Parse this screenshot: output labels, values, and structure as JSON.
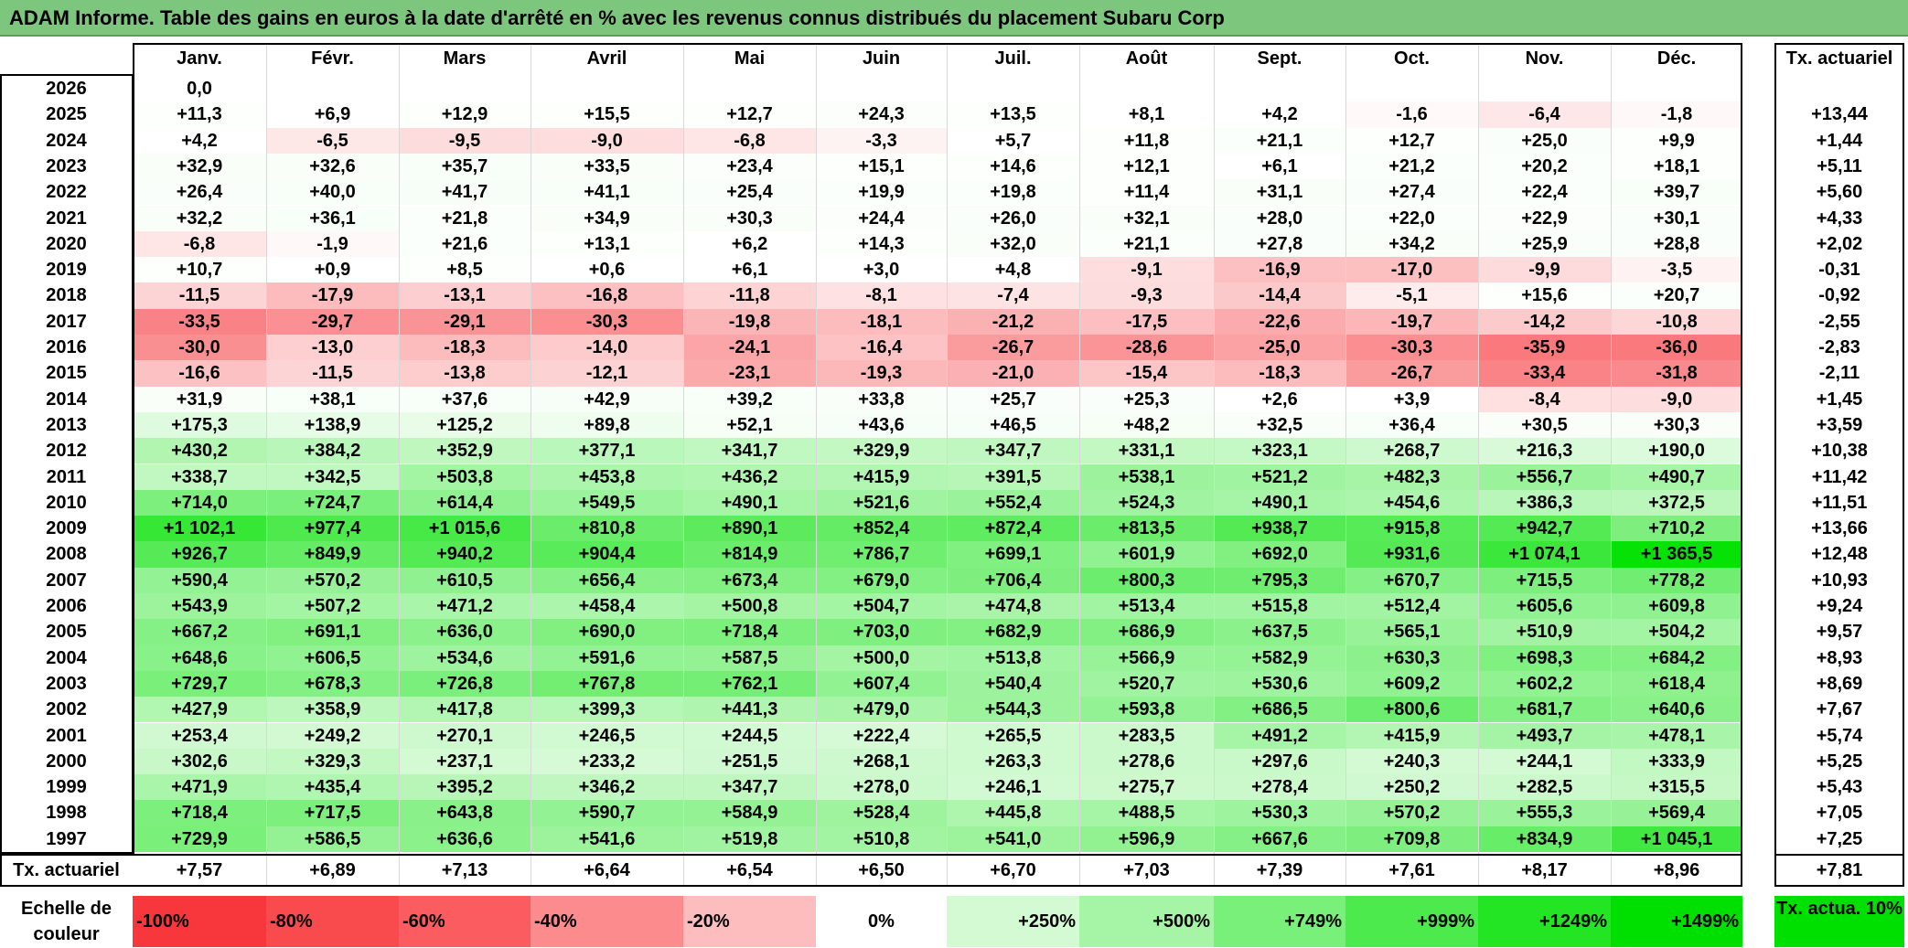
{
  "title": "ADAM Informe. Table des gains en euros à la date d'arrêté en % avec les revenus connus distribués du placement Subaru Corp",
  "months": [
    "Janv.",
    "Févr.",
    "Mars",
    "Avril",
    "Mai",
    "Juin",
    "Juil.",
    "Août",
    "Sept.",
    "Oct.",
    "Nov.",
    "Déc."
  ],
  "rate_header": "Tx. actuariel",
  "rows": [
    {
      "year": "2026",
      "values": [
        "0,0",
        "",
        "",
        "",
        "",
        "",
        "",
        "",
        "",
        "",
        "",
        ""
      ],
      "rate": ""
    },
    {
      "year": "2025",
      "values": [
        "+11,3",
        "+6,9",
        "+12,9",
        "+15,5",
        "+12,7",
        "+24,3",
        "+13,5",
        "+8,1",
        "+4,2",
        "-1,6",
        "-6,4",
        "-1,8"
      ],
      "rate": "+13,44"
    },
    {
      "year": "2024",
      "values": [
        "+4,2",
        "-6,5",
        "-9,5",
        "-9,0",
        "-6,8",
        "-3,3",
        "+5,7",
        "+11,8",
        "+21,1",
        "+12,7",
        "+25,0",
        "+9,9"
      ],
      "rate": "+1,44"
    },
    {
      "year": "2023",
      "values": [
        "+32,9",
        "+32,6",
        "+35,7",
        "+33,5",
        "+23,4",
        "+15,1",
        "+14,6",
        "+12,1",
        "+6,1",
        "+21,2",
        "+20,2",
        "+18,1"
      ],
      "rate": "+5,11"
    },
    {
      "year": "2022",
      "values": [
        "+26,4",
        "+40,0",
        "+41,7",
        "+41,1",
        "+25,4",
        "+19,9",
        "+19,8",
        "+11,4",
        "+31,1",
        "+27,4",
        "+22,4",
        "+39,7"
      ],
      "rate": "+5,60"
    },
    {
      "year": "2021",
      "values": [
        "+32,2",
        "+36,1",
        "+21,8",
        "+34,9",
        "+30,3",
        "+24,4",
        "+26,0",
        "+32,1",
        "+28,0",
        "+22,0",
        "+22,9",
        "+30,1"
      ],
      "rate": "+4,33"
    },
    {
      "year": "2020",
      "values": [
        "-6,8",
        "-1,9",
        "+21,6",
        "+13,1",
        "+6,2",
        "+14,3",
        "+32,0",
        "+21,1",
        "+27,8",
        "+34,2",
        "+25,9",
        "+28,8"
      ],
      "rate": "+2,02"
    },
    {
      "year": "2019",
      "values": [
        "+10,7",
        "+0,9",
        "+8,5",
        "+0,6",
        "+6,1",
        "+3,0",
        "+4,8",
        "-9,1",
        "-16,9",
        "-17,0",
        "-9,9",
        "-3,5"
      ],
      "rate": "-0,31"
    },
    {
      "year": "2018",
      "values": [
        "-11,5",
        "-17,9",
        "-13,1",
        "-16,8",
        "-11,8",
        "-8,1",
        "-7,4",
        "-9,3",
        "-14,4",
        "-5,1",
        "+15,6",
        "+20,7"
      ],
      "rate": "-0,92"
    },
    {
      "year": "2017",
      "values": [
        "-33,5",
        "-29,7",
        "-29,1",
        "-30,3",
        "-19,8",
        "-18,1",
        "-21,2",
        "-17,5",
        "-22,6",
        "-19,7",
        "-14,2",
        "-10,8"
      ],
      "rate": "-2,55"
    },
    {
      "year": "2016",
      "values": [
        "-30,0",
        "-13,0",
        "-18,3",
        "-14,0",
        "-24,1",
        "-16,4",
        "-26,7",
        "-28,6",
        "-25,0",
        "-30,3",
        "-35,9",
        "-36,0"
      ],
      "rate": "-2,83"
    },
    {
      "year": "2015",
      "values": [
        "-16,6",
        "-11,5",
        "-13,8",
        "-12,1",
        "-23,1",
        "-19,3",
        "-21,0",
        "-15,4",
        "-18,3",
        "-26,7",
        "-33,4",
        "-31,8"
      ],
      "rate": "-2,11"
    },
    {
      "year": "2014",
      "values": [
        "+31,9",
        "+38,1",
        "+37,6",
        "+42,9",
        "+39,2",
        "+33,8",
        "+25,7",
        "+25,3",
        "+2,6",
        "+3,9",
        "-8,4",
        "-9,0"
      ],
      "rate": "+1,45"
    },
    {
      "year": "2013",
      "values": [
        "+175,3",
        "+138,9",
        "+125,2",
        "+89,8",
        "+52,1",
        "+43,6",
        "+46,5",
        "+48,2",
        "+32,5",
        "+36,4",
        "+30,5",
        "+30,3"
      ],
      "rate": "+3,59"
    },
    {
      "year": "2012",
      "values": [
        "+430,2",
        "+384,2",
        "+352,9",
        "+377,1",
        "+341,7",
        "+329,9",
        "+347,7",
        "+331,1",
        "+323,1",
        "+268,7",
        "+216,3",
        "+190,0"
      ],
      "rate": "+10,38"
    },
    {
      "year": "2011",
      "values": [
        "+338,7",
        "+342,5",
        "+503,8",
        "+453,8",
        "+436,2",
        "+415,9",
        "+391,5",
        "+538,1",
        "+521,2",
        "+482,3",
        "+556,7",
        "+490,7"
      ],
      "rate": "+11,42"
    },
    {
      "year": "2010",
      "values": [
        "+714,0",
        "+724,7",
        "+614,4",
        "+549,5",
        "+490,1",
        "+521,6",
        "+552,4",
        "+524,3",
        "+490,1",
        "+454,6",
        "+386,3",
        "+372,5"
      ],
      "rate": "+11,51"
    },
    {
      "year": "2009",
      "values": [
        "+1 102,1",
        "+977,4",
        "+1 015,6",
        "+810,8",
        "+890,1",
        "+852,4",
        "+872,4",
        "+813,5",
        "+938,7",
        "+915,8",
        "+942,7",
        "+710,2"
      ],
      "rate": "+13,66"
    },
    {
      "year": "2008",
      "values": [
        "+926,7",
        "+849,9",
        "+940,2",
        "+904,4",
        "+814,9",
        "+786,7",
        "+699,1",
        "+601,9",
        "+692,0",
        "+931,6",
        "+1 074,1",
        "+1 365,5"
      ],
      "rate": "+12,48"
    },
    {
      "year": "2007",
      "values": [
        "+590,4",
        "+570,2",
        "+610,5",
        "+656,4",
        "+673,4",
        "+679,0",
        "+706,4",
        "+800,3",
        "+795,3",
        "+670,7",
        "+715,5",
        "+778,2"
      ],
      "rate": "+10,93"
    },
    {
      "year": "2006",
      "values": [
        "+543,9",
        "+507,2",
        "+471,2",
        "+458,4",
        "+500,8",
        "+504,7",
        "+474,8",
        "+513,4",
        "+515,8",
        "+512,4",
        "+605,6",
        "+609,8"
      ],
      "rate": "+9,24"
    },
    {
      "year": "2005",
      "values": [
        "+667,2",
        "+691,1",
        "+636,0",
        "+690,0",
        "+718,4",
        "+703,0",
        "+682,9",
        "+686,9",
        "+637,5",
        "+565,1",
        "+510,9",
        "+504,2"
      ],
      "rate": "+9,57"
    },
    {
      "year": "2004",
      "values": [
        "+648,6",
        "+606,5",
        "+534,6",
        "+591,6",
        "+587,5",
        "+500,0",
        "+513,8",
        "+566,9",
        "+582,9",
        "+630,3",
        "+698,3",
        "+684,2"
      ],
      "rate": "+8,93"
    },
    {
      "year": "2003",
      "values": [
        "+729,7",
        "+678,3",
        "+726,8",
        "+767,8",
        "+762,1",
        "+607,4",
        "+540,4",
        "+520,7",
        "+530,6",
        "+609,2",
        "+602,2",
        "+618,4"
      ],
      "rate": "+8,69"
    },
    {
      "year": "2002",
      "values": [
        "+427,9",
        "+358,9",
        "+417,8",
        "+399,3",
        "+441,3",
        "+479,0",
        "+544,3",
        "+593,8",
        "+686,5",
        "+800,6",
        "+681,7",
        "+640,6"
      ],
      "rate": "+7,67"
    },
    {
      "year": "2001",
      "values": [
        "+253,4",
        "+249,2",
        "+270,1",
        "+246,5",
        "+244,5",
        "+222,4",
        "+265,5",
        "+283,5",
        "+491,2",
        "+415,9",
        "+493,7",
        "+478,1"
      ],
      "rate": "+5,74"
    },
    {
      "year": "2000",
      "values": [
        "+302,6",
        "+329,3",
        "+237,1",
        "+233,2",
        "+251,5",
        "+268,1",
        "+263,3",
        "+278,6",
        "+297,6",
        "+240,3",
        "+244,1",
        "+333,9"
      ],
      "rate": "+5,25"
    },
    {
      "year": "1999",
      "values": [
        "+471,9",
        "+435,4",
        "+395,2",
        "+346,2",
        "+347,7",
        "+278,0",
        "+246,1",
        "+275,7",
        "+278,4",
        "+250,2",
        "+282,5",
        "+315,5"
      ],
      "rate": "+5,43"
    },
    {
      "year": "1998",
      "values": [
        "+718,4",
        "+717,5",
        "+643,8",
        "+590,7",
        "+584,9",
        "+528,4",
        "+445,8",
        "+488,5",
        "+530,3",
        "+570,2",
        "+555,3",
        "+569,4"
      ],
      "rate": "+7,05"
    },
    {
      "year": "1997",
      "values": [
        "+729,9",
        "+586,5",
        "+636,6",
        "+541,6",
        "+519,8",
        "+510,8",
        "+541,0",
        "+596,9",
        "+667,6",
        "+709,8",
        "+834,9",
        "+1 045,1"
      ],
      "rate": "+7,25"
    }
  ],
  "footer": {
    "label": "Tx. actuariel",
    "values": [
      "+7,57",
      "+6,89",
      "+7,13",
      "+6,64",
      "+6,54",
      "+6,50",
      "+6,70",
      "+7,03",
      "+7,39",
      "+7,61",
      "+8,17",
      "+8,96"
    ],
    "rate": "+7,81"
  },
  "legend": {
    "label": "Echelle de couleur",
    "items": [
      {
        "text": "-100%",
        "color": "#f8373c"
      },
      {
        "text": "-80%",
        "color": "#f94a4e"
      },
      {
        "text": "-60%",
        "color": "#fa5c60"
      },
      {
        "text": "-40%",
        "color": "#fc8b8e"
      },
      {
        "text": "-20%",
        "color": "#fdbdbf"
      },
      {
        "text": "0%",
        "color": "#ffffff"
      },
      {
        "text": "+250%",
        "color": "#d3fad3"
      },
      {
        "text": "+500%",
        "color": "#a6f5a6"
      },
      {
        "text": "+749%",
        "color": "#79f079"
      },
      {
        "text": "+999%",
        "color": "#4dea4d"
      },
      {
        "text": "+1249%",
        "color": "#24e524"
      },
      {
        "text": "+1499%",
        "color": "#00e000"
      }
    ],
    "rate_box": {
      "text": "Tx. actua. 10%",
      "color": "#00e000"
    }
  }
}
